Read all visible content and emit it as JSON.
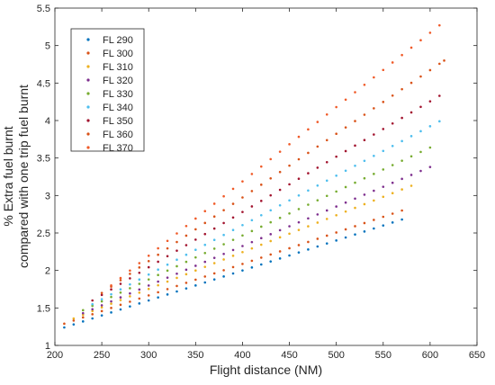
{
  "chart_data": {
    "type": "scatter",
    "xlabel": "Flight distance (NM)",
    "ylabel_line1": "% Extra fuel burnt",
    "ylabel_line2": "compared with one trip fuel burnt",
    "xlim": [
      200,
      650
    ],
    "ylim": [
      1,
      5.5
    ],
    "xticks": [
      200,
      250,
      300,
      350,
      400,
      450,
      500,
      550,
      600,
      650
    ],
    "yticks": [
      1,
      1.5,
      2,
      2.5,
      3,
      3.5,
      4,
      4.5,
      5,
      5.5
    ],
    "xtick_labels": [
      "200",
      "250",
      "300",
      "350",
      "400",
      "450",
      "500",
      "550",
      "600",
      "650"
    ],
    "ytick_labels": [
      "1",
      "1.5",
      "2",
      "2.5",
      "3",
      "3.5",
      "4",
      "4.5",
      "5",
      "5.5"
    ],
    "grid": false,
    "legend_position": "top-left",
    "series": [
      {
        "name": "FL 290",
        "color": "#0072BD",
        "x_start": 210,
        "x_end": 570,
        "x_step": 10,
        "y_start": 1.24,
        "y_end": 2.68
      },
      {
        "name": "FL 300",
        "color": "#D95319",
        "x_start": 210,
        "x_end": 570,
        "x_step": 10,
        "y_start": 1.29,
        "y_end": 2.8
      },
      {
        "name": "FL 310",
        "color": "#EDB120",
        "x_start": 220,
        "x_end": 580,
        "x_step": 10,
        "y_start": 1.36,
        "y_end": 3.13
      },
      {
        "name": "FL 320",
        "color": "#7E2F8E",
        "x_start": 230,
        "x_end": 600,
        "x_step": 10,
        "y_start": 1.43,
        "y_end": 3.38
      },
      {
        "name": "FL 330",
        "color": "#77AC30",
        "x_start": 230,
        "x_end": 600,
        "x_step": 10,
        "y_start": 1.47,
        "y_end": 3.64
      },
      {
        "name": "FL 340",
        "color": "#4DBEEE",
        "x_start": 240,
        "x_end": 610,
        "x_step": 10,
        "y_start": 1.55,
        "y_end": 3.99
      },
      {
        "name": "FL 350",
        "color": "#A2142F",
        "x_start": 240,
        "x_end": 610,
        "x_step": 10,
        "y_start": 1.6,
        "y_end": 4.33
      },
      {
        "name": "FL 360",
        "color": "#D95319",
        "x_start": 250,
        "x_end": 615,
        "x_step": 10,
        "y_start": 1.7,
        "y_end": 4.8
      },
      {
        "name": "FL 370",
        "color": "#F05A28",
        "x_start": 260,
        "x_end": 610,
        "x_step": 10,
        "y_start": 1.8,
        "y_end": 5.27
      }
    ]
  }
}
